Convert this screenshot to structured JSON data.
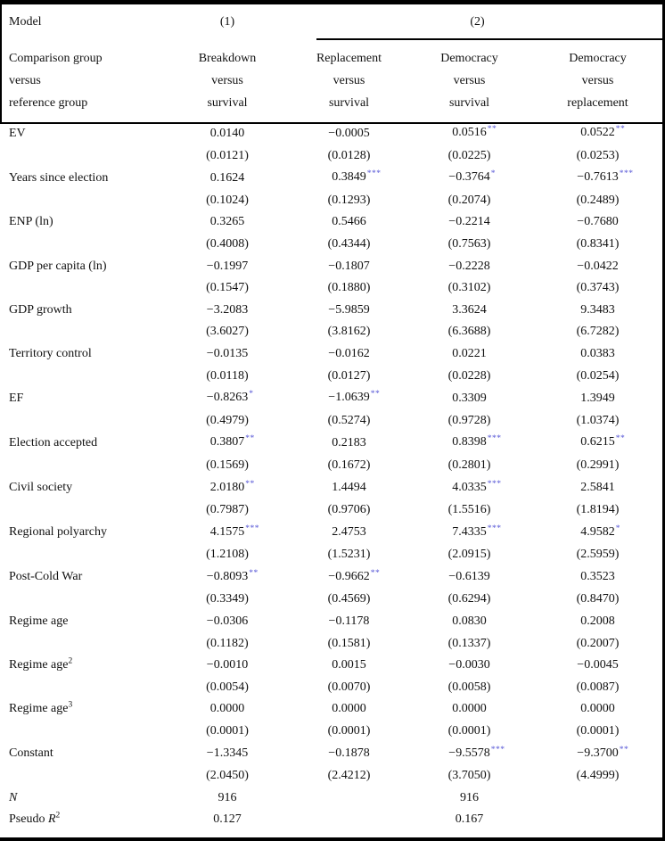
{
  "table": {
    "star_color": "#5555d6",
    "header": {
      "model_label": "Model",
      "model1_label": "(1)",
      "model2_label": "(2)",
      "comparison_lines": [
        "Comparison group",
        "versus",
        "reference group"
      ],
      "columns": [
        {
          "id": "breakdown-vs-survival",
          "lines": [
            "Breakdown",
            "versus",
            "survival"
          ]
        },
        {
          "id": "replacement-vs-survival",
          "lines": [
            "Replacement",
            "versus",
            "survival"
          ]
        },
        {
          "id": "democracy-vs-survival",
          "lines": [
            "Democracy",
            "versus",
            "survival"
          ]
        },
        {
          "id": "democracy-vs-replacement",
          "lines": [
            "Democracy",
            "versus",
            "replacement"
          ]
        }
      ]
    },
    "rows": [
      {
        "label": "EV",
        "label_sup": "",
        "coefs": [
          "0.0140",
          "−0.0005",
          "0.0516",
          "0.0522"
        ],
        "stars": [
          "",
          "",
          "**",
          "**"
        ],
        "ses": [
          "(0.0121)",
          "(0.0128)",
          "(0.0225)",
          "(0.0253)"
        ]
      },
      {
        "label": "Years since election",
        "label_sup": "",
        "coefs": [
          "0.1624",
          "0.3849",
          "−0.3764",
          "−0.7613"
        ],
        "stars": [
          "",
          "***",
          "*",
          "***"
        ],
        "ses": [
          "(0.1024)",
          "(0.1293)",
          "(0.2074)",
          "(0.2489)"
        ]
      },
      {
        "label": "ENP (ln)",
        "label_sup": "",
        "coefs": [
          "0.3265",
          "0.5466",
          "−0.2214",
          "−0.7680"
        ],
        "stars": [
          "",
          "",
          "",
          ""
        ],
        "ses": [
          "(0.4008)",
          "(0.4344)",
          "(0.7563)",
          "(0.8341)"
        ]
      },
      {
        "label": "GDP per capita (ln)",
        "label_sup": "",
        "coefs": [
          "−0.1997",
          "−0.1807",
          "−0.2228",
          "−0.0422"
        ],
        "stars": [
          "",
          "",
          "",
          ""
        ],
        "ses": [
          "(0.1547)",
          "(0.1880)",
          "(0.3102)",
          "(0.3743)"
        ]
      },
      {
        "label": "GDP growth",
        "label_sup": "",
        "coefs": [
          "−3.2083",
          "−5.9859",
          "3.3624",
          "9.3483"
        ],
        "stars": [
          "",
          "",
          "",
          ""
        ],
        "ses": [
          "(3.6027)",
          "(3.8162)",
          "(6.3688)",
          "(6.7282)"
        ]
      },
      {
        "label": "Territory control",
        "label_sup": "",
        "coefs": [
          "−0.0135",
          "−0.0162",
          "0.0221",
          "0.0383"
        ],
        "stars": [
          "",
          "",
          "",
          ""
        ],
        "ses": [
          "(0.0118)",
          "(0.0127)",
          "(0.0228)",
          "(0.0254)"
        ]
      },
      {
        "label": "EF",
        "label_sup": "",
        "coefs": [
          "−0.8263",
          "−1.0639",
          "0.3309",
          "1.3949"
        ],
        "stars": [
          "*",
          "**",
          "",
          ""
        ],
        "ses": [
          "(0.4979)",
          "(0.5274)",
          "(0.9728)",
          "(1.0374)"
        ]
      },
      {
        "label": "Election accepted",
        "label_sup": "",
        "coefs": [
          "0.3807",
          "0.2183",
          "0.8398",
          "0.6215"
        ],
        "stars": [
          "**",
          "",
          "***",
          "**"
        ],
        "ses": [
          "(0.1569)",
          "(0.1672)",
          "(0.2801)",
          "(0.2991)"
        ]
      },
      {
        "label": "Civil society",
        "label_sup": "",
        "coefs": [
          "2.0180",
          "1.4494",
          "4.0335",
          "2.5841"
        ],
        "stars": [
          "**",
          "",
          "***",
          ""
        ],
        "ses": [
          "(0.7987)",
          "(0.9706)",
          "(1.5516)",
          "(1.8194)"
        ]
      },
      {
        "label": "Regional polyarchy",
        "label_sup": "",
        "coefs": [
          "4.1575",
          "2.4753",
          "7.4335",
          "4.9582"
        ],
        "stars": [
          "***",
          "",
          "***",
          "*"
        ],
        "ses": [
          "(1.2108)",
          "(1.5231)",
          "(2.0915)",
          "(2.5959)"
        ]
      },
      {
        "label": "Post-Cold War",
        "label_sup": "",
        "coefs": [
          "−0.8093",
          "−0.9662",
          "−0.6139",
          "0.3523"
        ],
        "stars": [
          "**",
          "**",
          "",
          ""
        ],
        "ses": [
          "(0.3349)",
          "(0.4569)",
          "(0.6294)",
          "(0.8470)"
        ]
      },
      {
        "label": "Regime age",
        "label_sup": "",
        "coefs": [
          "−0.0306",
          "−0.1178",
          "0.0830",
          "0.2008"
        ],
        "stars": [
          "",
          "",
          "",
          ""
        ],
        "ses": [
          "(0.1182)",
          "(0.1581)",
          "(0.1337)",
          "(0.2007)"
        ]
      },
      {
        "label": "Regime age",
        "label_sup": "2",
        "coefs": [
          "−0.0010",
          "0.0015",
          "−0.0030",
          "−0.0045"
        ],
        "stars": [
          "",
          "",
          "",
          ""
        ],
        "ses": [
          "(0.0054)",
          "(0.0070)",
          "(0.0058)",
          "(0.0087)"
        ]
      },
      {
        "label": "Regime age",
        "label_sup": "3",
        "coefs": [
          "0.0000",
          "0.0000",
          "0.0000",
          "0.0000"
        ],
        "stars": [
          "",
          "",
          "",
          ""
        ],
        "ses": [
          "(0.0001)",
          "(0.0001)",
          "(0.0001)",
          "(0.0001)"
        ]
      },
      {
        "label": "Constant",
        "label_sup": "",
        "coefs": [
          "−1.3345",
          "−0.1878",
          "−9.5578",
          "−9.3700"
        ],
        "stars": [
          "",
          "",
          "***",
          "**"
        ],
        "ses": [
          "(2.0450)",
          "(2.4212)",
          "(3.7050)",
          "(4.4999)"
        ]
      }
    ],
    "stats": [
      {
        "prefix": "",
        "italic": "N",
        "sup": "",
        "values": [
          "916",
          "",
          "916",
          ""
        ]
      },
      {
        "prefix": "Pseudo ",
        "italic": "R",
        "sup": "2",
        "values": [
          "0.127",
          "",
          "0.167",
          ""
        ]
      }
    ]
  }
}
